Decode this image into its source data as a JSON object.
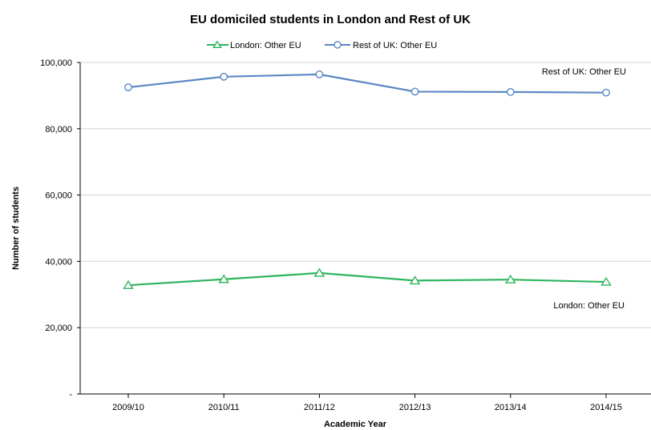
{
  "chart_data": {
    "type": "line",
    "title": "EU domiciled students in London and Rest of UK",
    "xlabel": "Academic Year",
    "ylabel": "Number of students",
    "categories": [
      "2009/10",
      "2010/11",
      "2011/12",
      "2012/13",
      "2013/14",
      "2014/15"
    ],
    "ylim": [
      0,
      100000
    ],
    "yticks": [
      0,
      20000,
      40000,
      60000,
      80000,
      100000
    ],
    "ytick_labels": [
      "-",
      "20,000",
      "40,000",
      "60,000",
      "80,000",
      "100,000"
    ],
    "grid": "horizontal",
    "legend_position": "top",
    "series": [
      {
        "name": "London: Other EU",
        "color": "#2db55d",
        "marker": "triangle",
        "end_label": "London: Other EU",
        "values": [
          32800,
          34600,
          36500,
          34200,
          34500,
          33800
        ]
      },
      {
        "name": "Rest of UK: Other EU",
        "color": "#5b87c5",
        "marker": "circle",
        "end_label": "Rest of UK: Other EU",
        "values": [
          92500,
          95700,
          96400,
          91200,
          91100,
          90900
        ]
      }
    ]
  }
}
